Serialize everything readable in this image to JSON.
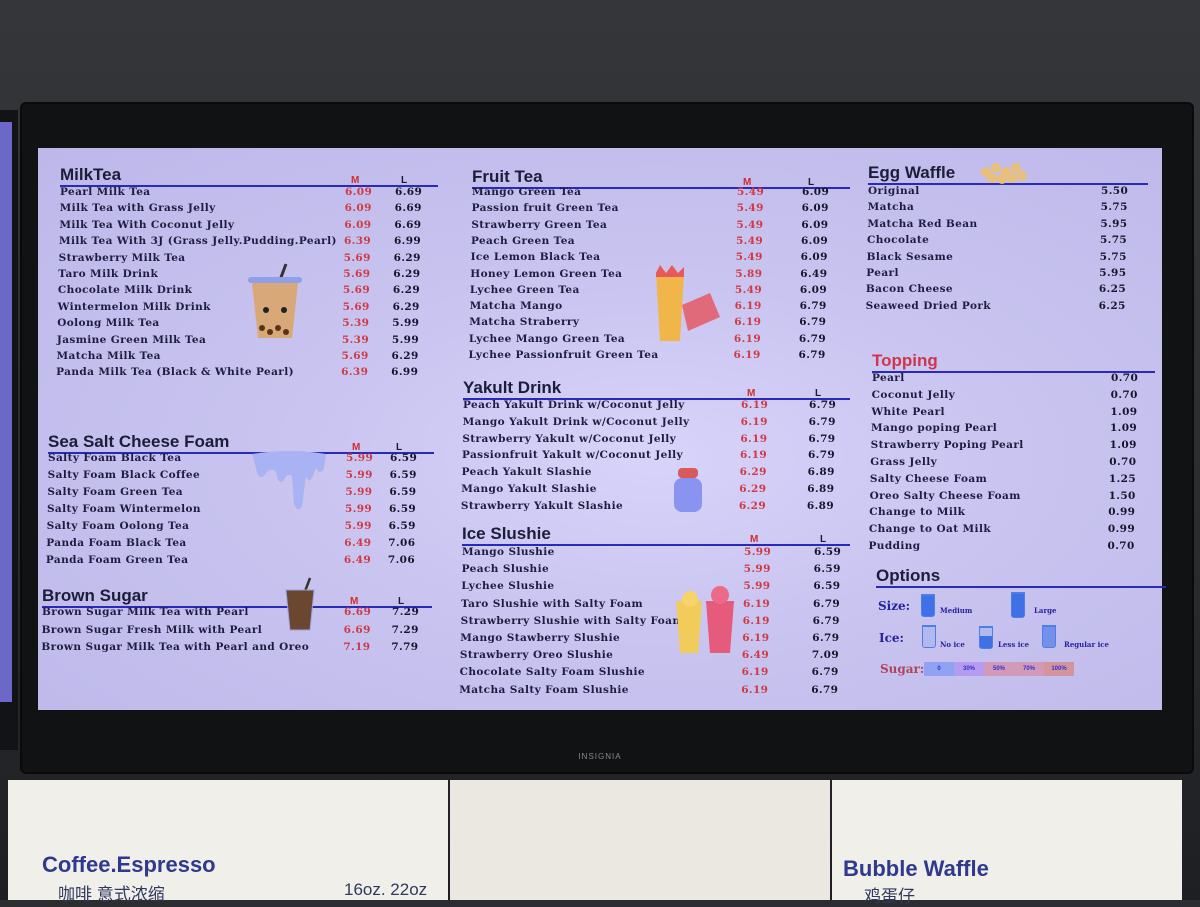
{
  "tv_brand": "INSIGNIA",
  "sections": [
    {
      "id": "milktea",
      "title": "MilkTea",
      "col_m": "M",
      "col_l": "L",
      "items": [
        {
          "name": "Pearl Milk Tea",
          "m": "6.09",
          "l": "6.69"
        },
        {
          "name": "Milk Tea with Grass Jelly",
          "m": "6.09",
          "l": "6.69"
        },
        {
          "name": "Milk Tea With Coconut Jelly",
          "m": "6.09",
          "l": "6.69"
        },
        {
          "name": "Milk Tea With 3J  (Grass Jelly.Pudding.Pearl)",
          "m": "6.39",
          "l": "6.99"
        },
        {
          "name": "Strawberry Milk Tea",
          "m": "5.69",
          "l": "6.29"
        },
        {
          "name": "Taro Milk Drink",
          "m": "5.69",
          "l": "6.29"
        },
        {
          "name": "Chocolate Milk Drink",
          "m": "5.69",
          "l": "6.29"
        },
        {
          "name": "Wintermelon Milk Drink",
          "m": "5.69",
          "l": "6.29"
        },
        {
          "name": "Oolong Milk Tea",
          "m": "5.39",
          "l": "5.99"
        },
        {
          "name": "Jasmine Green Milk Tea",
          "m": "5.39",
          "l": "5.99"
        },
        {
          "name": "Matcha Milk Tea",
          "m": "5.69",
          "l": "6.29"
        },
        {
          "name": "Panda Milk Tea (Black & White Pearl)",
          "m": "6.39",
          "l": "6.99"
        }
      ]
    },
    {
      "id": "sea-salt",
      "title": "Sea Salt Cheese Foam",
      "col_m": "M",
      "col_l": "L",
      "items": [
        {
          "name": "Salty Foam Black Tea",
          "m": "5.99",
          "l": "6.59"
        },
        {
          "name": "Salty Foam Black Coffee",
          "m": "5.99",
          "l": "6.59"
        },
        {
          "name": "Salty Foam Green Tea",
          "m": "5.99",
          "l": "6.59"
        },
        {
          "name": "Salty Foam Wintermelon",
          "m": "5.99",
          "l": "6.59"
        },
        {
          "name": "Salty Foam Oolong Tea",
          "m": "5.99",
          "l": "6.59"
        },
        {
          "name": "Panda Foam Black Tea",
          "m": "6.49",
          "l": "7.06"
        },
        {
          "name": "Panda Foam Green Tea",
          "m": "6.49",
          "l": "7.06"
        }
      ]
    },
    {
      "id": "brown-sugar",
      "title": "Brown Sugar",
      "col_m": "M",
      "col_l": "L",
      "items": [
        {
          "name": "Brown Sugar Milk Tea with Pearl",
          "m": "6.69",
          "l": "7.29"
        },
        {
          "name": "Brown Sugar Fresh Milk with Pearl",
          "m": "6.69",
          "l": "7.29"
        },
        {
          "name": "Brown Sugar Milk Tea with Pearl and Oreo",
          "m": "7.19",
          "l": "7.79"
        }
      ]
    },
    {
      "id": "fruit-tea",
      "title": "Fruit Tea",
      "col_m": "M",
      "col_l": "L",
      "items": [
        {
          "name": "Mango Green Tea",
          "m": "5.49",
          "l": "6.09"
        },
        {
          "name": "Passion fruit Green Tea",
          "m": "5.49",
          "l": "6.09"
        },
        {
          "name": "Strawberry Green Tea",
          "m": "5.49",
          "l": "6.09"
        },
        {
          "name": "Peach Green Tea",
          "m": "5.49",
          "l": "6.09"
        },
        {
          "name": "Ice Lemon Black Tea",
          "m": "5.49",
          "l": "6.09"
        },
        {
          "name": "Honey Lemon Green Tea",
          "m": "5.89",
          "l": "6.49"
        },
        {
          "name": "Lychee Green Tea",
          "m": "5.49",
          "l": "6.09"
        },
        {
          "name": "Matcha Mango",
          "m": "6.19",
          "l": "6.79"
        },
        {
          "name": "Matcha Straberry",
          "m": "6.19",
          "l": "6.79"
        },
        {
          "name": "Lychee Mango Green Tea",
          "m": "6.19",
          "l": "6.79"
        },
        {
          "name": "Lychee Passionfruit Green Tea",
          "m": "6.19",
          "l": "6.79"
        }
      ]
    },
    {
      "id": "yakult",
      "title": "Yakult Drink",
      "col_m": "M",
      "col_l": "L",
      "items": [
        {
          "name": "Peach Yakult Drink w/Coconut Jelly",
          "m": "6.19",
          "l": "6.79"
        },
        {
          "name": "Mango Yakult Drink w/Coconut Jelly",
          "m": "6.19",
          "l": "6.79"
        },
        {
          "name": "Strawberry Yakult w/Coconut Jelly",
          "m": "6.19",
          "l": "6.79"
        },
        {
          "name": "Passionfruit Yakult w/Coconut Jelly",
          "m": "6.19",
          "l": "6.79"
        },
        {
          "name": "Peach Yakult Slashie",
          "m": "6.29",
          "l": "6.89"
        },
        {
          "name": "Mango Yakult Slashie",
          "m": "6.29",
          "l": "6.89"
        },
        {
          "name": "Strawberry Yakult Slashie",
          "m": "6.29",
          "l": "6.89"
        }
      ]
    },
    {
      "id": "ice-slushie",
      "title": "Ice Slushie",
      "col_m": "M",
      "col_l": "L",
      "items": [
        {
          "name": "Mango Slushie",
          "m": "5.99",
          "l": "6.59"
        },
        {
          "name": "Peach Slushie",
          "m": "5.99",
          "l": "6.59"
        },
        {
          "name": "Lychee Slushie",
          "m": "5.99",
          "l": "6.59"
        },
        {
          "name": "Taro Slushie with Salty Foam",
          "m": "6.19",
          "l": "6.79"
        },
        {
          "name": "Strawberry Slushie with Salty Foam",
          "m": "6.19",
          "l": "6.79"
        },
        {
          "name": "Mango Stawberry Slushie",
          "m": "6.19",
          "l": "6.79"
        },
        {
          "name": "Strawberry Oreo Slushie",
          "m": "6.49",
          "l": "7.09"
        },
        {
          "name": "Chocolate Salty Foam Slushie",
          "m": "6.19",
          "l": "6.79"
        },
        {
          "name": "Matcha Salty Foam Slushie",
          "m": "6.19",
          "l": "6.79"
        }
      ]
    },
    {
      "id": "egg-waffle",
      "title": "Egg Waffle",
      "items": [
        {
          "name": "Original",
          "p": "5.50"
        },
        {
          "name": "Matcha",
          "p": "5.75"
        },
        {
          "name": "Matcha Red Bean",
          "p": "5.95"
        },
        {
          "name": "Chocolate",
          "p": "5.75"
        },
        {
          "name": "Black Sesame",
          "p": "5.75"
        },
        {
          "name": "Pearl",
          "p": "5.95"
        },
        {
          "name": "Bacon Cheese",
          "p": "6.25"
        },
        {
          "name": "Seaweed Dried Pork",
          "p": "6.25"
        }
      ]
    },
    {
      "id": "topping",
      "title": "Topping",
      "title_color": "#d0364a",
      "items": [
        {
          "name": "Pearl",
          "p": "0.70"
        },
        {
          "name": "Coconut Jelly",
          "p": "0.70"
        },
        {
          "name": "White Pearl",
          "p": "1.09"
        },
        {
          "name": "Mango poping Pearl",
          "p": "1.09"
        },
        {
          "name": "Strawberry Poping Pearl",
          "p": "1.09"
        },
        {
          "name": "Grass Jelly",
          "p": "0.70"
        },
        {
          "name": "Salty Cheese Foam",
          "p": "1.25"
        },
        {
          "name": "Oreo Salty Cheese Foam",
          "p": "1.50"
        },
        {
          "name": "Change to Milk",
          "p": "0.99"
        },
        {
          "name": "Change to Oat Milk",
          "p": "0.99"
        },
        {
          "name": "Pudding",
          "p": "0.70"
        }
      ]
    }
  ],
  "options": {
    "title": "Options",
    "size_label": "Size:",
    "sizes": [
      "Medium",
      "Large"
    ],
    "ice_label": "Ice:",
    "ice": [
      "No ice",
      "Less ice",
      "Regular ice"
    ],
    "sugar_label": "Sugar:",
    "sugar": [
      "0",
      "30%",
      "50%",
      "70%",
      "100%"
    ]
  },
  "paper": {
    "left_title": "Coffee.Espresso",
    "left_sub": "咖啡 意式浓缩",
    "left_sizes": "16oz. 22oz",
    "right_title": "Bubble Waffle",
    "right_sub": "鸡蛋仔"
  },
  "colors": {
    "screen": "#c8c3ef",
    "heading": "#1c1d3a",
    "rule": "#2a2ab8",
    "medium_price": "#cf3a44",
    "topping_title": "#d0364a"
  }
}
